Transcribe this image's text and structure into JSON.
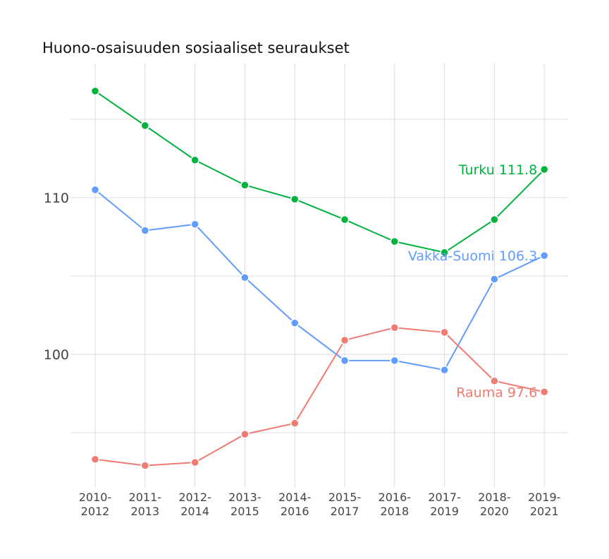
{
  "chart_data": {
    "type": "line",
    "title": "Huono-osaisuuden sosiaaliset seuraukset",
    "categories": [
      [
        "2010-",
        "2012"
      ],
      [
        "2011-",
        "2013"
      ],
      [
        "2012-",
        "2014"
      ],
      [
        "2013-",
        "2015"
      ],
      [
        "2014-",
        "2016"
      ],
      [
        "2015-",
        "2017"
      ],
      [
        "2016-",
        "2018"
      ],
      [
        "2017-",
        "2019"
      ],
      [
        "2018-",
        "2020"
      ],
      [
        "2019-",
        "2021"
      ]
    ],
    "yticks": [
      {
        "value": 100,
        "label": "100"
      },
      {
        "value": 110,
        "label": "110"
      }
    ],
    "y_gridlines": [
      95,
      100,
      105,
      110,
      115
    ],
    "ylim": [
      91,
      118.5
    ],
    "grid": true,
    "series": [
      {
        "name": "Turku",
        "end_label": "Turku 111.8",
        "color": "#00b33c",
        "values": [
          116.8,
          114.6,
          112.4,
          110.8,
          109.9,
          108.6,
          107.2,
          106.5,
          108.6,
          111.8
        ]
      },
      {
        "name": "Vakka-Suomi",
        "end_label": "Vakka-Suomi 106.3",
        "color": "#619cff",
        "values": [
          110.5,
          107.9,
          108.3,
          104.9,
          102.0,
          99.6,
          99.6,
          99.0,
          104.8,
          106.3
        ]
      },
      {
        "name": "Rauma",
        "end_label": "Rauma 97.6",
        "color": "#f07b72",
        "values": [
          93.3,
          92.9,
          93.1,
          94.9,
          95.6,
          100.9,
          101.7,
          101.4,
          98.3,
          97.6
        ]
      }
    ]
  }
}
